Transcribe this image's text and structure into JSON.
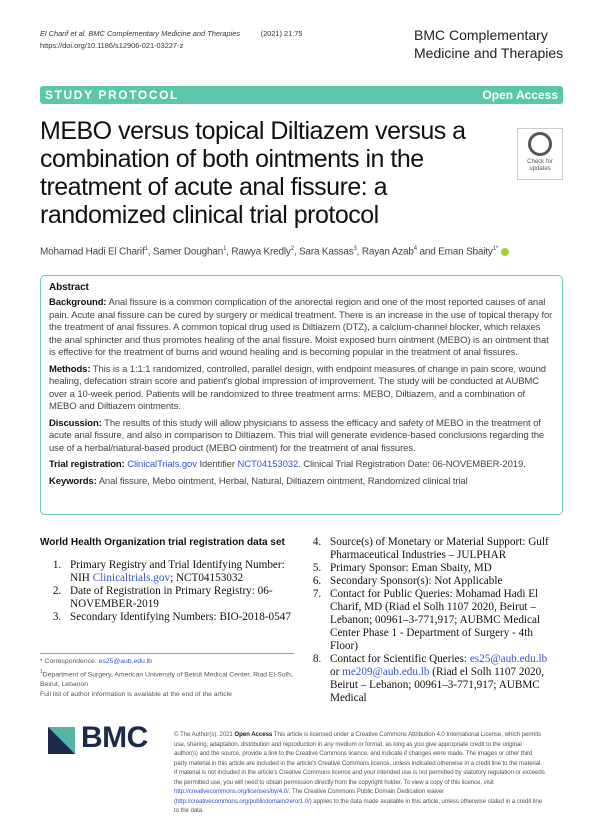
{
  "header": {
    "citation_authors": "El Charif et al.",
    "citation_journal": "BMC Complementary Medicine and Therapies",
    "citation_year_volume": "(2021) 21:75",
    "doi": "https://doi.org/10.1186/s12906-021-03227-z",
    "journal_name_line1": "BMC Complementary",
    "journal_name_line2": "Medicine and Therapies"
  },
  "banner": {
    "type": "STUDY PROTOCOL",
    "access": "Open Access",
    "color": "#5cc6a8"
  },
  "check_updates": "Check for updates",
  "title": "MEBO versus topical Diltiazem versus a combination of both ointments in the treatment of acute anal fissure: a randomized clinical trial protocol",
  "authors": [
    {
      "name": "Mohamad Hadi El Charif",
      "aff": "1"
    },
    {
      "name": "Samer Doughan",
      "aff": "1"
    },
    {
      "name": "Rawya Kredly",
      "aff": "2"
    },
    {
      "name": "Sara Kassas",
      "aff": "3"
    },
    {
      "name": "Rayan Azab",
      "aff": "4"
    },
    {
      "name": "Eman Sbaity",
      "aff": "1*"
    }
  ],
  "authors_and": "and",
  "abstract": {
    "heading": "Abstract",
    "background_label": "Background:",
    "background": "Anal fissure is a common complication of the anorectal region and one of the most reported causes of anal pain. Acute anal fissure can be cured by surgery or medical treatment. There is an increase in the use of topical therapy for the treatment of anal fissures. A common topical drug used is Diltiazem (DTZ), a calcium-channel blocker, which relaxes the anal sphincter and thus promotes healing of the anal fissure. Moist exposed burn ointment (MEBO) is an ointment that is effective for the treatment of burns and wound healing and is becoming popular in the treatment of anal fissures.",
    "methods_label": "Methods:",
    "methods": "This is a 1:1:1 randomized, controlled, parallel design, with endpoint measures of change in pain score, wound healing, defecation strain score and patient's global impression of improvement. The study will be conducted at AUBMC over a 10-week period. Patients will be randomized to three treatment arms: MEBO, Diltiazem, and a combination of MEBO and Diltiazem ointments.",
    "discussion_label": "Discussion:",
    "discussion": "The results of this study will allow physicians to assess the efficacy and safety of MEBO in the treatment of acute anal fissure, and also in comparison to Diltiazem. This trial will generate evidence-based conclusions regarding the use of a herbal/natural-based product (MEBO ointment) for the treatment of anal fissures.",
    "trial_label": "Trial registration:",
    "trial_link1": "ClinicalTrials.gov",
    "trial_text1": "Identifier",
    "trial_link2": "NCT04153032",
    "trial_text2": ". Clinical Trial Registration Date: 06-NOVEMBER-2019.",
    "keywords_label": "Keywords:",
    "keywords": "Anal fissure, Mebo ointment, Herbal, Natural, Diltiazem ointment, Randomized clinical trial"
  },
  "who": {
    "heading": "World Health Organization trial registration data set",
    "item1_pre": "Primary Registry and Trial Identifying Number: NIH",
    "item1_link": "Clinicaltrials.gov",
    "item1_post": "; NCT04153032",
    "item2": "Date of Registration in Primary Registry: 06-NOVEMBER-2019",
    "item3": "Secondary Identifying Numbers: BIO-2018-0547",
    "item4": "Source(s) of Monetary or Material Support: Gulf Pharmaceutical Industries – JULPHAR",
    "item5": "Primary Sponsor: Eman Sbaity, MD",
    "item6": "Secondary Sponsor(s): Not Applicable",
    "item7": "Contact for Public Queries: Mohamad Hadi El Charif, MD (Riad el Solh 1107 2020, Beirut – Lebanon; 00961–3-771,917; AUBMC Medical Center Phase 1 - Department of Surgery - 4th Floor)",
    "item8_pre": "Contact for Scientific Queries:",
    "item8_email1": "es25@aub.edu.lb",
    "item8_or": "or",
    "item8_email2": "me209@aub.edu.lb",
    "item8_post": "(Riad el Solh 1107 2020, Beirut – Lebanon; 00961–3-771,917; AUBMC Medical"
  },
  "footnotes": {
    "correspondence_label": "* Correspondence:",
    "correspondence_email": "es25@aub.edu.lb",
    "affiliation_mark": "1",
    "affiliation": "Department of Surgery, American University of Beirut Medical Center, Riad El-Solh, Beirut, Lebanon",
    "full_list": "Full list of author information is available at the end of the article"
  },
  "logo": "BMC",
  "license": {
    "pre": "© The Author(s). 2021",
    "open_access": "Open Access",
    "text1": "This article is licensed under a Creative Commons Attribution 4.0 International License, which permits use, sharing, adaptation, distribution and reproduction in any medium or format, as long as you give appropriate credit to the original author(s) and the source, provide a link to the Creative Commons licence, and indicate if changes were made. The images or other third party material in this article are included in the article's Creative Commons licence, unless indicated otherwise in a credit line to the material. If material is not included in the article's Creative Commons licence and your intended use is not permitted by statutory regulation or exceeds the permitted use, you will need to obtain permission directly from the copyright holder. To view a copy of this licence, visit",
    "link1": "http://creativecommons.org/licenses/by/4.0/",
    "text2": ". The Creative Commons Public Domain Dedication waiver (",
    "link2": "http://creativecommons.org/publicdomain/zero/1.0/",
    "text3": ") applies to the data made available in this article, unless otherwise stated in a credit line to the data."
  }
}
